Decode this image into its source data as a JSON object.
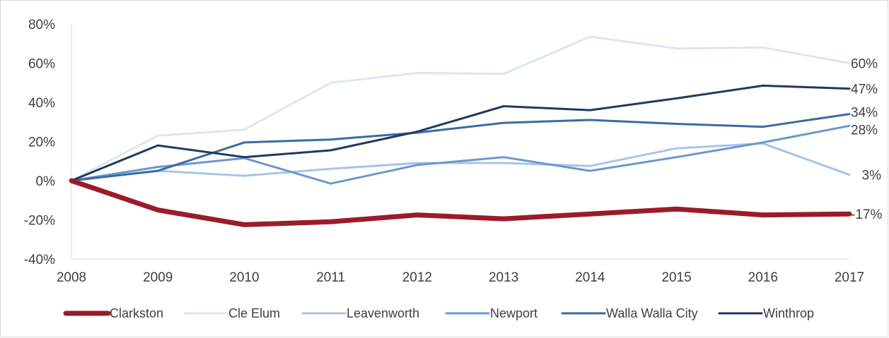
{
  "chart_data": {
    "type": "line",
    "title": "",
    "xlabel": "",
    "ylabel": "",
    "x": [
      "2008",
      "2009",
      "2010",
      "2011",
      "2012",
      "2013",
      "2014",
      "2015",
      "2016",
      "2017"
    ],
    "ylim": [
      -40,
      80
    ],
    "yticks": [
      -40,
      -20,
      0,
      20,
      40,
      60,
      80
    ],
    "ytick_labels": [
      "-40%",
      "-20%",
      "0%",
      "20%",
      "40%",
      "60%",
      "80%"
    ],
    "grid": false,
    "legend_position": "bottom",
    "series": [
      {
        "name": "Clarkston",
        "color": "#9b1b2a",
        "width": 7,
        "values": [
          0,
          -15,
          -22.5,
          -21,
          -17.5,
          -19.5,
          -17,
          -14.5,
          -17.5,
          -17
        ],
        "end_label": "-17%"
      },
      {
        "name": "Cle Elum",
        "color": "#dde6f1",
        "width": 3,
        "values": [
          0,
          23,
          26,
          50,
          55,
          54.5,
          73.5,
          67.5,
          68,
          60
        ],
        "end_label": "60%"
      },
      {
        "name": "Leavenworth",
        "color": "#a9c4e3",
        "width": 3,
        "values": [
          0,
          5,
          2.5,
          6,
          9,
          9,
          7.5,
          16.5,
          19,
          3
        ],
        "end_label": "3%"
      },
      {
        "name": "Newport",
        "color": "#6a98d0",
        "width": 3,
        "values": [
          0,
          7,
          11.5,
          -1.5,
          8,
          12,
          5,
          12,
          19.5,
          28
        ],
        "end_label": "28%"
      },
      {
        "name": "Walla Walla City",
        "color": "#3a6ba4",
        "width": 3,
        "values": [
          0,
          5,
          19.5,
          21,
          24.5,
          29.5,
          31,
          29,
          27.5,
          34
        ],
        "end_label": "34%"
      },
      {
        "name": "Winthrop",
        "color": "#1f3a5f",
        "width": 3,
        "values": [
          0,
          18,
          12,
          15.5,
          25,
          38,
          36,
          42,
          48.5,
          47
        ],
        "end_label": "47%"
      }
    ]
  }
}
